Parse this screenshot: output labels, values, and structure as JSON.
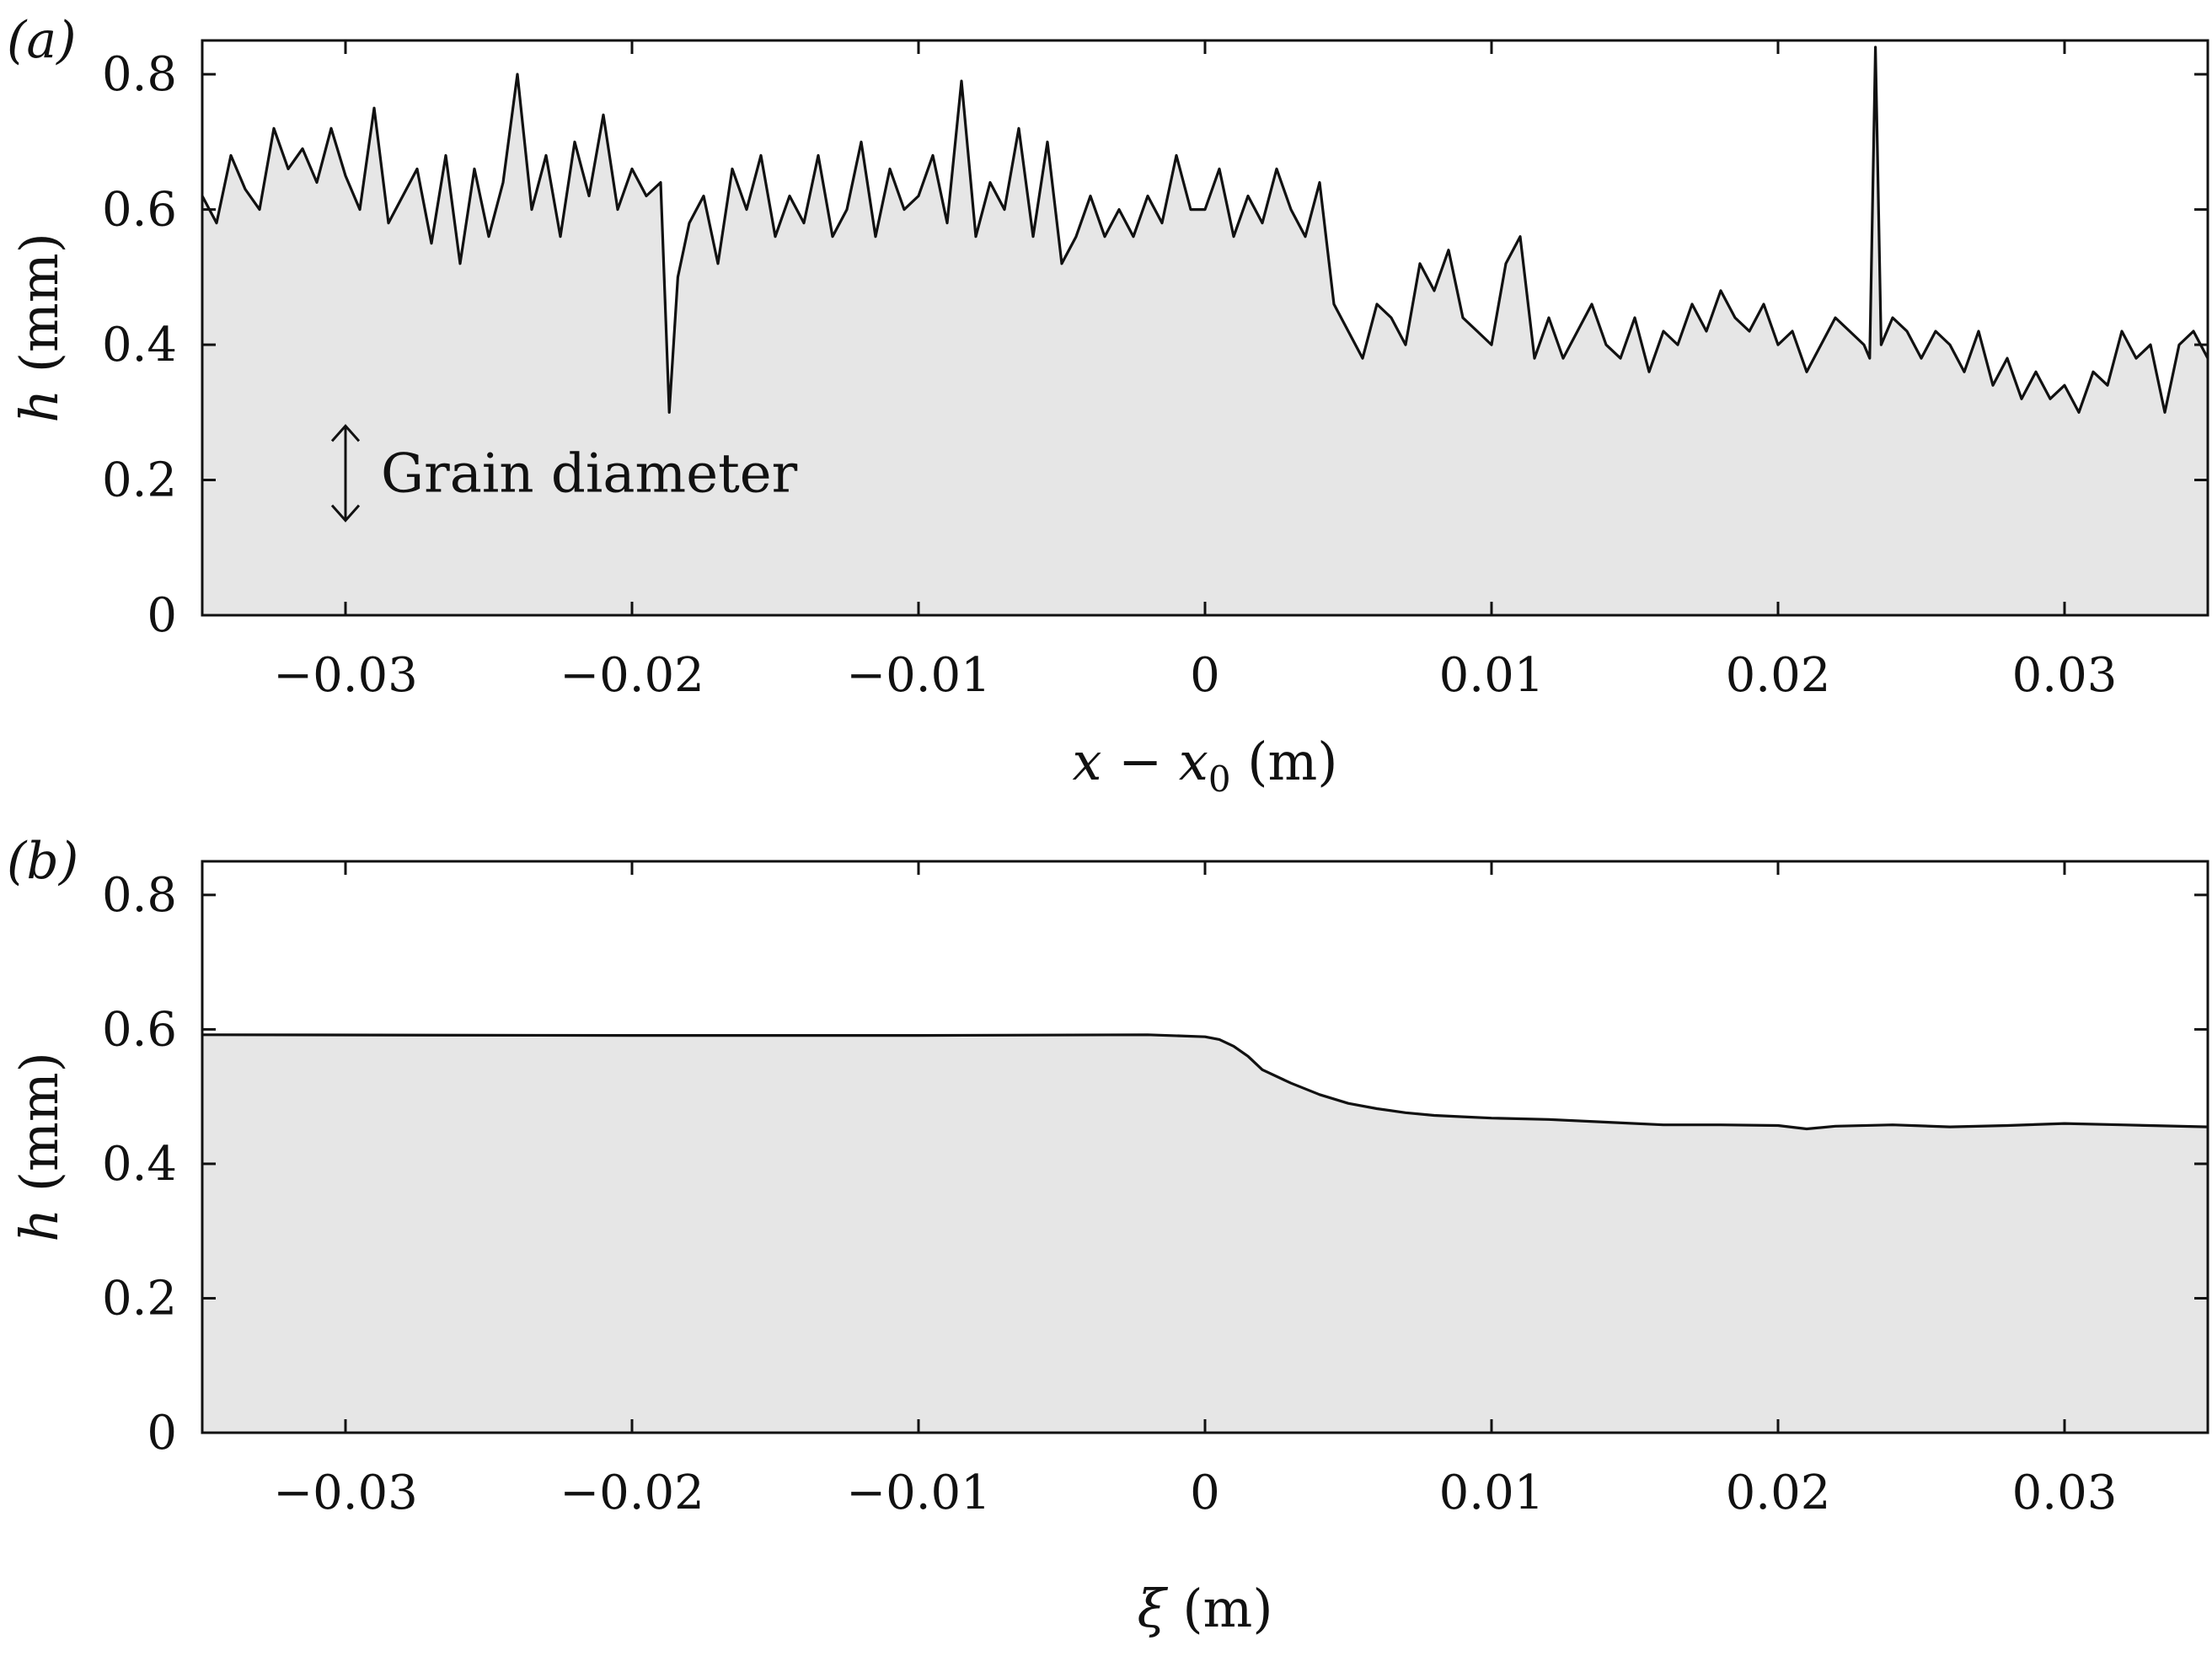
{
  "chart_data": [
    {
      "type": "area",
      "panel_label": "(a)",
      "xlabel": {
        "italic": "x",
        "mid": " − ",
        "italic2": "x",
        "sub": "0",
        "unit": " (m)"
      },
      "ylabel": {
        "italic": "h",
        "unit": " (mm)"
      },
      "xlim": [
        -0.035,
        0.035
      ],
      "ylim": [
        0,
        0.85
      ],
      "xticks": [
        -0.03,
        -0.02,
        -0.01,
        0,
        0.01,
        0.02,
        0.03
      ],
      "xtick_labels": [
        "−0.03",
        "−0.02",
        "−0.01",
        "0",
        "0.01",
        "0.02",
        "0.03"
      ],
      "yticks": [
        0,
        0.2,
        0.4,
        0.6,
        0.8
      ],
      "ytick_labels": [
        "0",
        "0.2",
        "0.4",
        "0.6",
        "0.8"
      ],
      "annotation": {
        "text": "Grain diameter",
        "x": -0.03,
        "y_from": 0.14,
        "y_to": 0.28
      },
      "series": [
        {
          "x": [
            -0.035,
            -0.0345,
            -0.034,
            -0.0335,
            -0.033,
            -0.0325,
            -0.032,
            -0.0315,
            -0.031,
            -0.0305,
            -0.03,
            -0.0295,
            -0.029,
            -0.0285,
            -0.028,
            -0.0275,
            -0.027,
            -0.0265,
            -0.026,
            -0.0255,
            -0.025,
            -0.0245,
            -0.024,
            -0.0235,
            -0.023,
            -0.0225,
            -0.022,
            -0.0215,
            -0.021,
            -0.0205,
            -0.02,
            -0.0195,
            -0.019,
            -0.0187,
            -0.0184,
            -0.018,
            -0.0175,
            -0.017,
            -0.0165,
            -0.016,
            -0.0155,
            -0.015,
            -0.0145,
            -0.014,
            -0.0135,
            -0.013,
            -0.0125,
            -0.012,
            -0.0115,
            -0.011,
            -0.0105,
            -0.01,
            -0.0095,
            -0.009,
            -0.0085,
            -0.008,
            -0.0075,
            -0.007,
            -0.0065,
            -0.006,
            -0.0055,
            -0.005,
            -0.0045,
            -0.004,
            -0.0035,
            -0.003,
            -0.0025,
            -0.002,
            -0.0015,
            -0.001,
            -0.0005,
            0,
            0.0005,
            0.001,
            0.0015,
            0.002,
            0.0025,
            0.003,
            0.0035,
            0.004,
            0.0045,
            0.005,
            0.0055,
            0.006,
            0.0065,
            0.007,
            0.0075,
            0.008,
            0.0085,
            0.009,
            0.0095,
            0.01,
            0.0105,
            0.011,
            0.0115,
            0.012,
            0.0125,
            0.013,
            0.0135,
            0.014,
            0.0145,
            0.015,
            0.0155,
            0.016,
            0.0165,
            0.017,
            0.0175,
            0.018,
            0.0185,
            0.019,
            0.0195,
            0.02,
            0.0205,
            0.021,
            0.0215,
            0.022,
            0.0225,
            0.023,
            0.0232,
            0.0234,
            0.0236,
            0.024,
            0.0245,
            0.025,
            0.0255,
            0.026,
            0.0265,
            0.027,
            0.0275,
            0.028,
            0.0285,
            0.029,
            0.0295,
            0.03,
            0.0305,
            0.031,
            0.0315,
            0.032,
            0.0325,
            0.033,
            0.0335,
            0.034,
            0.0345,
            0.035
          ],
          "y": [
            0.62,
            0.58,
            0.68,
            0.63,
            0.6,
            0.72,
            0.66,
            0.69,
            0.64,
            0.72,
            0.65,
            0.6,
            0.75,
            0.58,
            0.62,
            0.66,
            0.55,
            0.68,
            0.52,
            0.66,
            0.56,
            0.64,
            0.8,
            0.6,
            0.68,
            0.56,
            0.7,
            0.62,
            0.74,
            0.6,
            0.66,
            0.62,
            0.64,
            0.3,
            0.5,
            0.58,
            0.62,
            0.52,
            0.66,
            0.6,
            0.68,
            0.56,
            0.62,
            0.58,
            0.68,
            0.56,
            0.6,
            0.7,
            0.56,
            0.66,
            0.6,
            0.62,
            0.68,
            0.58,
            0.79,
            0.56,
            0.64,
            0.6,
            0.72,
            0.56,
            0.7,
            0.52,
            0.56,
            0.62,
            0.56,
            0.6,
            0.56,
            0.62,
            0.58,
            0.68,
            0.6,
            0.6,
            0.66,
            0.56,
            0.62,
            0.58,
            0.66,
            0.6,
            0.56,
            0.64,
            0.46,
            0.42,
            0.38,
            0.46,
            0.44,
            0.4,
            0.52,
            0.48,
            0.54,
            0.44,
            0.42,
            0.4,
            0.52,
            0.56,
            0.38,
            0.44,
            0.38,
            0.42,
            0.46,
            0.4,
            0.38,
            0.44,
            0.36,
            0.42,
            0.4,
            0.46,
            0.42,
            0.48,
            0.44,
            0.42,
            0.46,
            0.4,
            0.42,
            0.36,
            0.4,
            0.44,
            0.42,
            0.4,
            0.38,
            0.84,
            0.4,
            0.44,
            0.42,
            0.38,
            0.42,
            0.4,
            0.36,
            0.42,
            0.34,
            0.38,
            0.32,
            0.36,
            0.32,
            0.34,
            0.3,
            0.36,
            0.34,
            0.42,
            0.38,
            0.4,
            0.3,
            0.4,
            0.42,
            0.38
          ]
        }
      ]
    },
    {
      "type": "area",
      "panel_label": "(b)",
      "xlabel": {
        "italic": "ξ",
        "unit": " (m)"
      },
      "ylabel": {
        "italic": "h",
        "unit": " (mm)"
      },
      "xlim": [
        -0.035,
        0.035
      ],
      "ylim": [
        0,
        0.85
      ],
      "xticks": [
        -0.03,
        -0.02,
        -0.01,
        0,
        0.01,
        0.02,
        0.03
      ],
      "xtick_labels": [
        "−0.03",
        "−0.02",
        "−0.01",
        "0",
        "0.01",
        "0.02",
        "0.03"
      ],
      "yticks": [
        0,
        0.2,
        0.4,
        0.6,
        0.8
      ],
      "ytick_labels": [
        "0",
        "0.2",
        "0.4",
        "0.6",
        "0.8"
      ],
      "series": [
        {
          "x": [
            -0.035,
            -0.02,
            -0.01,
            -0.002,
            0,
            0.0005,
            0.001,
            0.0015,
            0.002,
            0.003,
            0.004,
            0.005,
            0.006,
            0.007,
            0.008,
            0.009,
            0.01,
            0.012,
            0.014,
            0.016,
            0.018,
            0.02,
            0.021,
            0.022,
            0.024,
            0.026,
            0.028,
            0.03,
            0.032,
            0.035
          ],
          "y": [
            0.592,
            0.591,
            0.591,
            0.592,
            0.589,
            0.585,
            0.575,
            0.56,
            0.54,
            0.52,
            0.503,
            0.49,
            0.482,
            0.476,
            0.472,
            0.47,
            0.468,
            0.466,
            0.462,
            0.458,
            0.458,
            0.457,
            0.452,
            0.456,
            0.458,
            0.455,
            0.457,
            0.46,
            0.458,
            0.455
          ]
        }
      ]
    }
  ]
}
